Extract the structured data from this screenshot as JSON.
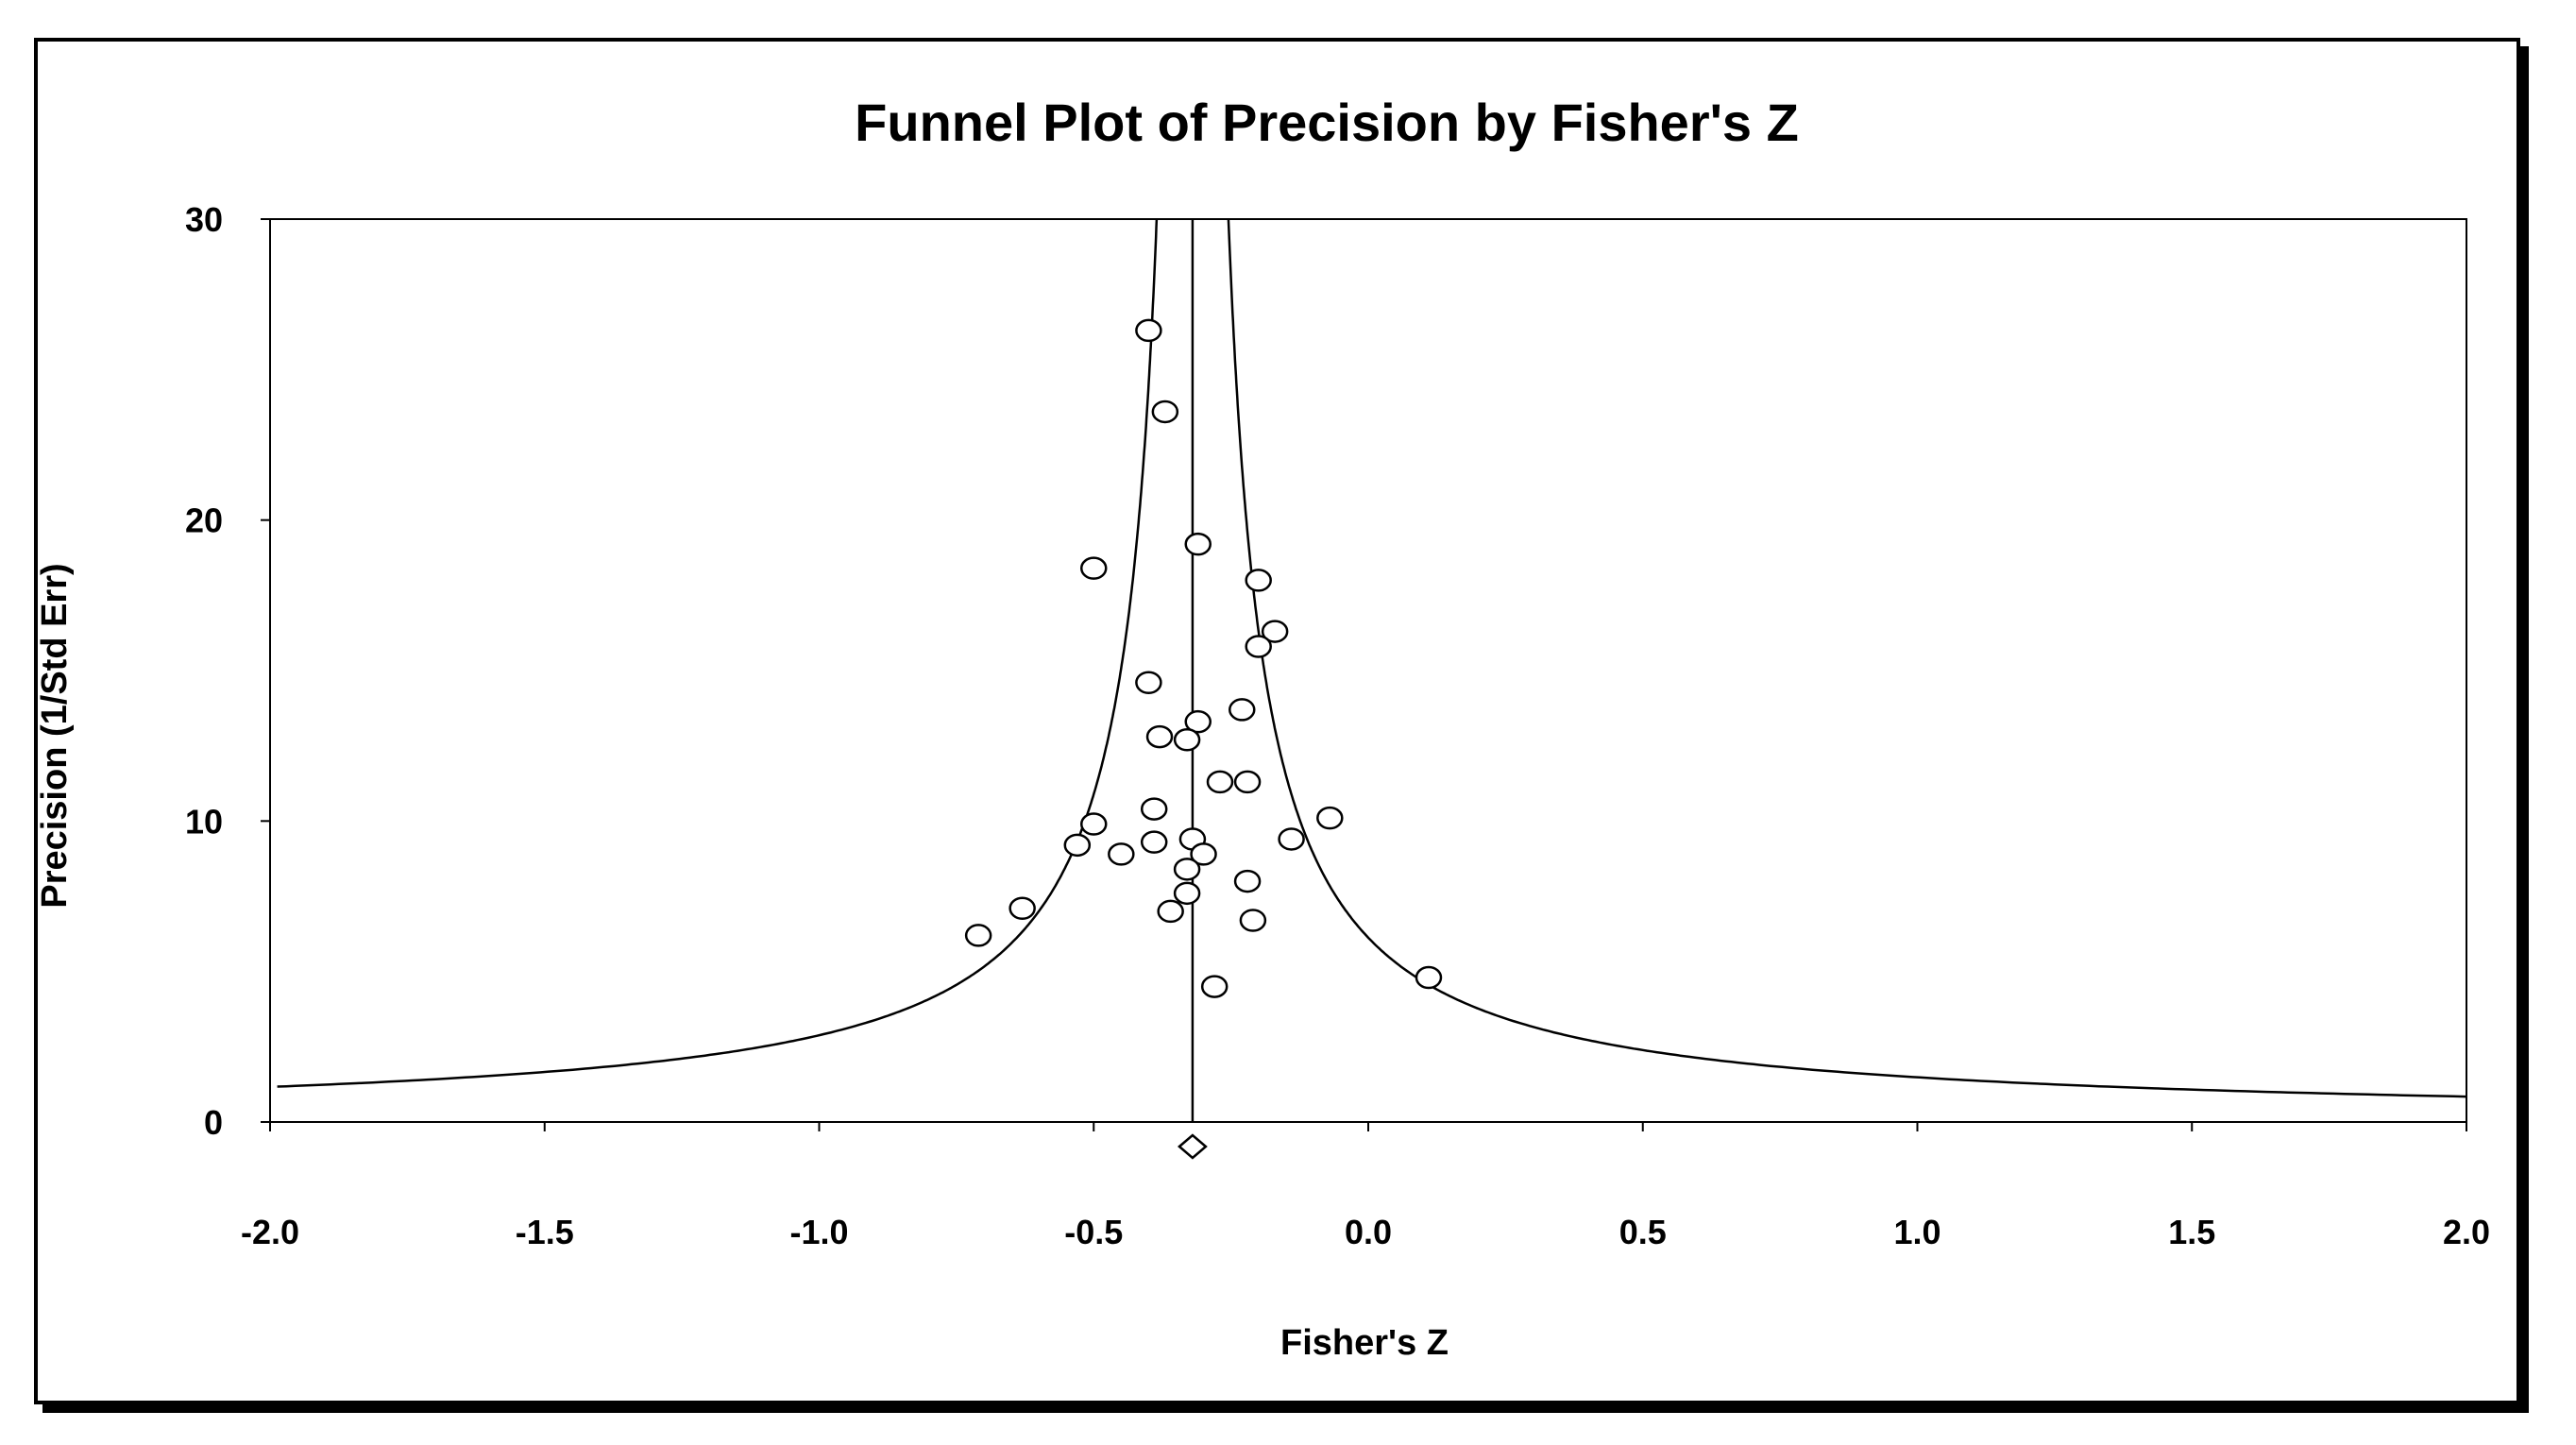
{
  "chart_data": {
    "type": "scatter",
    "title": "Funnel Plot of Precision by Fisher's Z",
    "xlabel": "Fisher's Z",
    "ylabel": "Precision (1/Std Err)",
    "xlim": [
      -2.0,
      2.0
    ],
    "ylim": [
      0,
      30
    ],
    "xticks": [
      "-2.0",
      "-1.5",
      "-1.0",
      "-0.5",
      "0.0",
      "0.5",
      "1.0",
      "1.5",
      "2.0"
    ],
    "yticks": [
      "0",
      "10",
      "20",
      "30"
    ],
    "grid": false,
    "legend": "none",
    "summary_effect": -0.32,
    "points": [
      {
        "x": -0.4,
        "y": 26.3
      },
      {
        "x": -0.37,
        "y": 23.6
      },
      {
        "x": -0.31,
        "y": 19.2
      },
      {
        "x": -0.5,
        "y": 18.4
      },
      {
        "x": -0.2,
        "y": 18.0
      },
      {
        "x": -0.17,
        "y": 16.3
      },
      {
        "x": -0.2,
        "y": 15.8
      },
      {
        "x": -0.4,
        "y": 14.6
      },
      {
        "x": -0.23,
        "y": 13.7
      },
      {
        "x": -0.31,
        "y": 13.3
      },
      {
        "x": -0.38,
        "y": 12.8
      },
      {
        "x": -0.33,
        "y": 12.7
      },
      {
        "x": -0.27,
        "y": 11.3
      },
      {
        "x": -0.22,
        "y": 11.3
      },
      {
        "x": -0.39,
        "y": 10.4
      },
      {
        "x": -0.07,
        "y": 10.1
      },
      {
        "x": -0.5,
        "y": 9.9
      },
      {
        "x": -0.32,
        "y": 9.4
      },
      {
        "x": -0.14,
        "y": 9.4
      },
      {
        "x": -0.39,
        "y": 9.3
      },
      {
        "x": -0.53,
        "y": 9.2
      },
      {
        "x": -0.45,
        "y": 8.9
      },
      {
        "x": -0.3,
        "y": 8.9
      },
      {
        "x": -0.33,
        "y": 8.4
      },
      {
        "x": -0.22,
        "y": 8.0
      },
      {
        "x": -0.33,
        "y": 7.6
      },
      {
        "x": -0.63,
        "y": 7.1
      },
      {
        "x": -0.36,
        "y": 7.0
      },
      {
        "x": -0.21,
        "y": 6.7
      },
      {
        "x": -0.71,
        "y": 6.2
      },
      {
        "x": 0.11,
        "y": 4.8
      },
      {
        "x": -0.28,
        "y": 4.5
      }
    ],
    "colors": {
      "line": "#000000",
      "marker_fill": "#ffffff",
      "marker_stroke": "#000000"
    }
  }
}
